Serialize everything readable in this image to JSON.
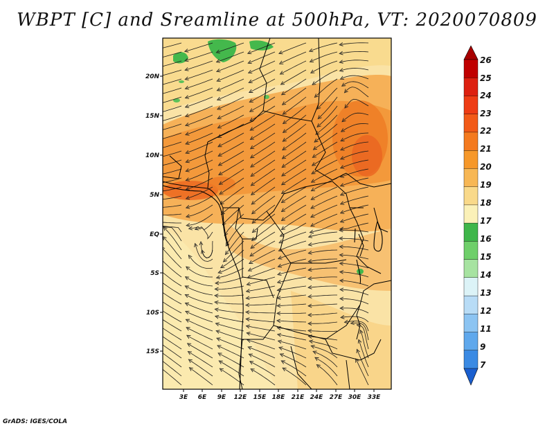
{
  "title": "WBPT [C] and Sreamline at 500hPa, VT: 2020070809",
  "footer": "GrADS: IGES/COLA",
  "map": {
    "variable": "WBPT [C]",
    "level": "500hPa",
    "valid_time": "2020070809",
    "lon_range": [
      0,
      36
    ],
    "lat_range": [
      -20,
      24
    ],
    "lon_ticks": [
      "3E",
      "6E",
      "9E",
      "12E",
      "15E",
      "18E",
      "21E",
      "24E",
      "27E",
      "30E",
      "33E"
    ],
    "lat_ticks": [
      "20N",
      "15N",
      "10N",
      "5N",
      "EQ",
      "5S",
      "10S",
      "15S"
    ]
  },
  "colorbar": {
    "levels": [
      "26",
      "25",
      "24",
      "23",
      "22",
      "21",
      "20",
      "19",
      "18",
      "17",
      "16",
      "15",
      "14",
      "13",
      "12",
      "11",
      "9",
      "7"
    ],
    "colors": [
      "#c00000",
      "#dd2010",
      "#ee3c15",
      "#f25a18",
      "#f47a1f",
      "#f6982a",
      "#f7b755",
      "#f9d98a",
      "#fbf1b8",
      "#3fb64a",
      "#6fcf6a",
      "#a7e3a1",
      "#dcf3f7",
      "#b8dcf6",
      "#8cc4f2",
      "#5fa8ec",
      "#3a8ae3",
      "#1e6fd8"
    ],
    "top_arrow_color": "#a80000",
    "bottom_arrow_color": "#1a5fcf"
  }
}
